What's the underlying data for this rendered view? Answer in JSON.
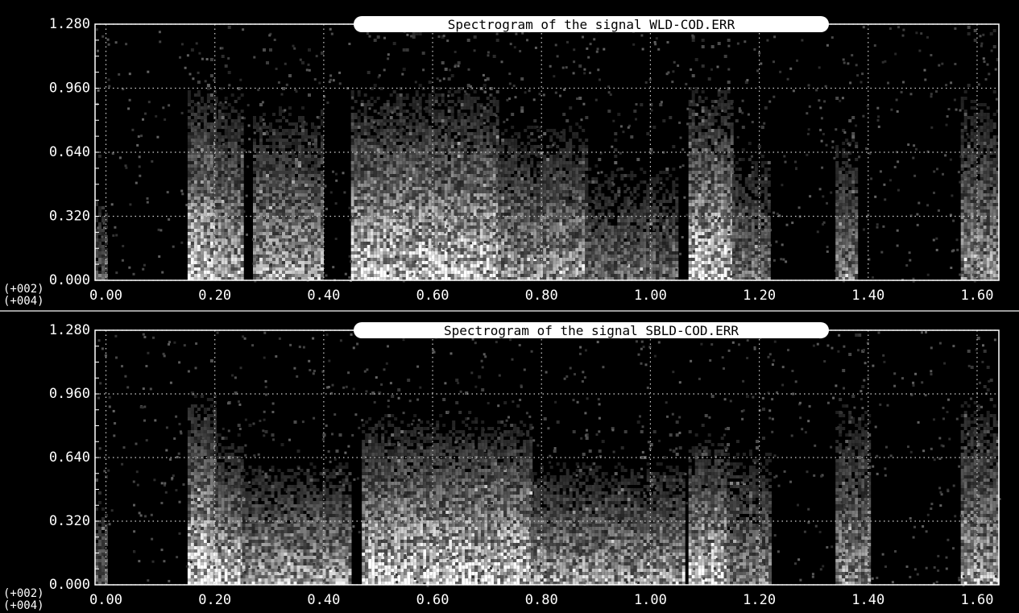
{
  "colors": {
    "background": "#000000",
    "axis": "#ffffff",
    "grid": "#cfcfcf",
    "title_bg": "#ffffff",
    "title_fg": "#000000",
    "low": "#000000",
    "mid": "#8a8a8a",
    "high": "#ffffff"
  },
  "chart_data": [
    {
      "type": "heatmap",
      "title": "Spectrogram of the signal WLD-COD.ERR",
      "xlabel": "",
      "ylabel": "",
      "x_exponent": "(+004)",
      "y_exponent": "(+002)",
      "xlim": [
        -0.02,
        1.64
      ],
      "ylim": [
        0.0,
        1.28
      ],
      "xticks": [
        0.0,
        0.2,
        0.4,
        0.6,
        0.8,
        1.0,
        1.2,
        1.4,
        1.6
      ],
      "xtick_labels": [
        "0.00",
        "0.20",
        "0.40",
        "0.60",
        "0.80",
        "1.00",
        "1.20",
        "1.40",
        "1.60"
      ],
      "yticks": [
        0.0,
        0.32,
        0.64,
        0.96,
        1.28
      ],
      "ytick_labels": [
        "0.000",
        "0.320",
        "0.640",
        "0.960",
        "1.280"
      ],
      "grid": true,
      "value_range": [
        0,
        1
      ],
      "bands": [
        {
          "x": [
            -0.02,
            0.0
          ],
          "level": 0.35,
          "top": 0.75
        },
        {
          "x": [
            0.15,
            0.2
          ],
          "level": 0.95,
          "top": 1.28
        },
        {
          "x": [
            0.2,
            0.25
          ],
          "level": 0.75,
          "top": 1.28
        },
        {
          "x": [
            0.27,
            0.4
          ],
          "level": 0.7,
          "top": 1.2
        },
        {
          "x": [
            0.45,
            0.72
          ],
          "level": 0.9,
          "top": 1.28
        },
        {
          "x": [
            0.72,
            0.88
          ],
          "level": 0.65,
          "top": 1.1
        },
        {
          "x": [
            0.88,
            1.05
          ],
          "level": 0.45,
          "top": 0.9
        },
        {
          "x": [
            1.07,
            1.15
          ],
          "level": 0.9,
          "top": 1.28
        },
        {
          "x": [
            1.15,
            1.22
          ],
          "level": 0.5,
          "top": 1.0
        },
        {
          "x": [
            1.34,
            1.38
          ],
          "level": 0.55,
          "top": 1.05
        },
        {
          "x": [
            1.57,
            1.64
          ],
          "level": 0.65,
          "top": 1.28
        }
      ]
    },
    {
      "type": "heatmap",
      "title": "Spectrogram of the signal SBLD-COD.ERR",
      "xlabel": "",
      "ylabel": "",
      "x_exponent": "(+004)",
      "y_exponent": "(+002)",
      "xlim": [
        -0.02,
        1.64
      ],
      "ylim": [
        0.0,
        1.28
      ],
      "xticks": [
        0.0,
        0.2,
        0.4,
        0.6,
        0.8,
        1.0,
        1.2,
        1.4,
        1.6
      ],
      "xtick_labels": [
        "0.00",
        "0.20",
        "0.40",
        "0.60",
        "0.80",
        "1.00",
        "1.20",
        "1.40",
        "1.60"
      ],
      "yticks": [
        0.0,
        0.32,
        0.64,
        0.96,
        1.28
      ],
      "ytick_labels": [
        "0.000",
        "0.320",
        "0.640",
        "0.960",
        "1.280"
      ],
      "grid": true,
      "value_range": [
        0,
        1
      ],
      "bands": [
        {
          "x": [
            -0.02,
            0.0
          ],
          "level": 0.4,
          "top": 0.7
        },
        {
          "x": [
            0.15,
            0.2
          ],
          "level": 0.95,
          "top": 1.28
        },
        {
          "x": [
            0.2,
            0.25
          ],
          "level": 0.85,
          "top": 1.0
        },
        {
          "x": [
            0.25,
            0.45
          ],
          "level": 0.7,
          "top": 0.85
        },
        {
          "x": [
            0.47,
            0.78
          ],
          "level": 0.95,
          "top": 1.1
        },
        {
          "x": [
            0.78,
            1.06
          ],
          "level": 0.7,
          "top": 0.85
        },
        {
          "x": [
            1.07,
            1.14
          ],
          "level": 0.9,
          "top": 1.0
        },
        {
          "x": [
            1.14,
            1.22
          ],
          "level": 0.55,
          "top": 1.0
        },
        {
          "x": [
            1.34,
            1.4
          ],
          "level": 0.6,
          "top": 1.28
        },
        {
          "x": [
            1.57,
            1.64
          ],
          "level": 0.7,
          "top": 1.28
        }
      ]
    }
  ]
}
